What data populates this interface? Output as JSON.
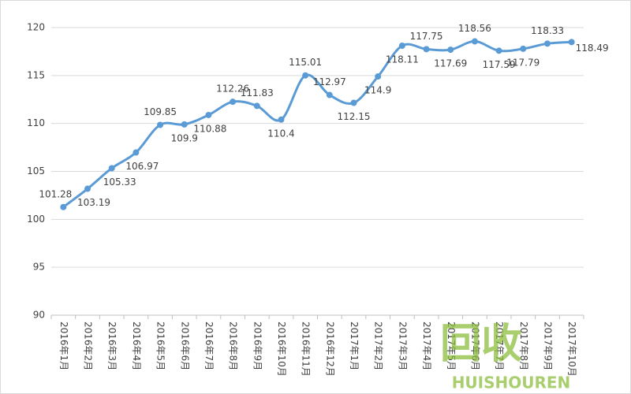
{
  "chart_data": {
    "type": "line",
    "categories": [
      "2016年1月",
      "2016年2月",
      "2016年3月",
      "2016年4月",
      "2016年5月",
      "2016年6月",
      "2016年7月",
      "2016年8月",
      "2016年9月",
      "2016年10月",
      "2016年11月",
      "2016年12月",
      "2017年1月",
      "2017年2月",
      "2017年3月",
      "2017年4月",
      "2017年5月",
      "2017年6月",
      "2017年7月",
      "2017年8月",
      "2017年9月",
      "2017年10月"
    ],
    "values": [
      101.28,
      103.19,
      105.33,
      106.97,
      109.85,
      109.9,
      110.88,
      112.26,
      111.83,
      110.4,
      115.01,
      112.97,
      112.15,
      114.9,
      118.11,
      117.75,
      117.69,
      118.56,
      117.59,
      117.79,
      118.33,
      118.49
    ],
    "color": "#5b9bd5",
    "ylim": [
      90,
      120
    ],
    "yticks": [
      90,
      95,
      100,
      105,
      110,
      115,
      120
    ],
    "grid": true,
    "smooth": true
  },
  "watermark": {
    "text": "回收",
    "subtext": "HUISHOUREN"
  }
}
